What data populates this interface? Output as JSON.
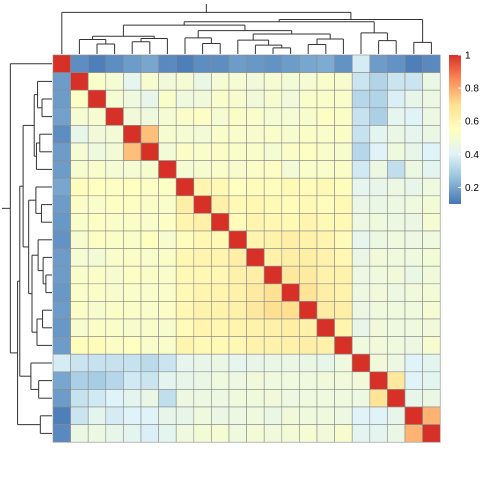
{
  "chart_data": {
    "type": "heatmap",
    "n": 22,
    "values": [
      [
        1.0,
        0.15,
        0.12,
        0.15,
        0.18,
        0.2,
        0.14,
        0.12,
        0.15,
        0.15,
        0.18,
        0.17,
        0.16,
        0.18,
        0.2,
        0.21,
        0.16,
        0.38,
        0.18,
        0.16,
        0.12,
        0.14
      ],
      [
        0.18,
        1.0,
        0.52,
        0.5,
        0.43,
        0.51,
        0.48,
        0.5,
        0.45,
        0.5,
        0.5,
        0.48,
        0.5,
        0.49,
        0.5,
        0.52,
        0.51,
        0.36,
        0.31,
        0.36,
        0.36,
        0.45
      ],
      [
        0.18,
        0.54,
        1.0,
        0.5,
        0.47,
        0.44,
        0.52,
        0.47,
        0.48,
        0.52,
        0.51,
        0.48,
        0.51,
        0.48,
        0.52,
        0.52,
        0.52,
        0.32,
        0.31,
        0.39,
        0.44,
        0.46
      ],
      [
        0.19,
        0.5,
        0.51,
        1.0,
        0.48,
        0.47,
        0.5,
        0.52,
        0.54,
        0.5,
        0.53,
        0.52,
        0.5,
        0.5,
        0.51,
        0.54,
        0.53,
        0.35,
        0.3,
        0.43,
        0.4,
        0.46
      ],
      [
        0.15,
        0.44,
        0.48,
        0.49,
        1.0,
        0.76,
        0.51,
        0.5,
        0.49,
        0.52,
        0.52,
        0.51,
        0.52,
        0.51,
        0.53,
        0.52,
        0.53,
        0.35,
        0.42,
        0.45,
        0.43,
        0.45
      ],
      [
        0.18,
        0.5,
        0.47,
        0.49,
        0.76,
        1.0,
        0.49,
        0.53,
        0.52,
        0.53,
        0.52,
        0.52,
        0.5,
        0.53,
        0.54,
        0.52,
        0.51,
        0.32,
        0.4,
        0.47,
        0.44,
        0.4
      ],
      [
        0.18,
        0.51,
        0.52,
        0.5,
        0.5,
        0.51,
        1.0,
        0.5,
        0.51,
        0.52,
        0.51,
        0.53,
        0.54,
        0.49,
        0.52,
        0.52,
        0.53,
        0.37,
        0.46,
        0.34,
        0.46,
        0.42
      ],
      [
        0.2,
        0.56,
        0.55,
        0.54,
        0.55,
        0.54,
        0.54,
        1.0,
        0.6,
        0.58,
        0.55,
        0.57,
        0.56,
        0.58,
        0.57,
        0.58,
        0.56,
        0.43,
        0.44,
        0.46,
        0.44,
        0.47
      ],
      [
        0.18,
        0.53,
        0.52,
        0.54,
        0.54,
        0.53,
        0.52,
        0.63,
        1.0,
        0.62,
        0.58,
        0.59,
        0.58,
        0.57,
        0.58,
        0.56,
        0.58,
        0.45,
        0.45,
        0.46,
        0.47,
        0.49
      ],
      [
        0.17,
        0.52,
        0.54,
        0.52,
        0.53,
        0.52,
        0.54,
        0.6,
        0.62,
        1.0,
        0.57,
        0.6,
        0.59,
        0.58,
        0.6,
        0.58,
        0.58,
        0.46,
        0.47,
        0.46,
        0.45,
        0.5
      ],
      [
        0.16,
        0.51,
        0.54,
        0.53,
        0.52,
        0.55,
        0.51,
        0.56,
        0.59,
        0.58,
        1.0,
        0.6,
        0.61,
        0.63,
        0.61,
        0.6,
        0.57,
        0.43,
        0.46,
        0.47,
        0.46,
        0.47
      ],
      [
        0.18,
        0.5,
        0.49,
        0.52,
        0.53,
        0.52,
        0.53,
        0.59,
        0.6,
        0.6,
        0.63,
        1.0,
        0.62,
        0.63,
        0.63,
        0.61,
        0.59,
        0.45,
        0.48,
        0.47,
        0.47,
        0.49
      ],
      [
        0.18,
        0.52,
        0.53,
        0.51,
        0.54,
        0.53,
        0.52,
        0.58,
        0.59,
        0.59,
        0.62,
        0.63,
        1.0,
        0.66,
        0.65,
        0.61,
        0.61,
        0.46,
        0.47,
        0.48,
        0.45,
        0.48
      ],
      [
        0.17,
        0.52,
        0.53,
        0.51,
        0.52,
        0.52,
        0.52,
        0.58,
        0.6,
        0.6,
        0.62,
        0.65,
        0.69,
        1.0,
        0.68,
        0.63,
        0.61,
        0.46,
        0.48,
        0.46,
        0.48,
        0.49
      ],
      [
        0.18,
        0.53,
        0.51,
        0.53,
        0.53,
        0.52,
        0.53,
        0.59,
        0.61,
        0.61,
        0.62,
        0.66,
        0.7,
        0.7,
        1.0,
        0.64,
        0.63,
        0.45,
        0.47,
        0.47,
        0.47,
        0.5
      ],
      [
        0.17,
        0.51,
        0.53,
        0.52,
        0.51,
        0.52,
        0.51,
        0.57,
        0.6,
        0.59,
        0.6,
        0.61,
        0.62,
        0.63,
        0.62,
        1.0,
        0.6,
        0.44,
        0.48,
        0.47,
        0.47,
        0.48
      ],
      [
        0.18,
        0.56,
        0.57,
        0.53,
        0.55,
        0.52,
        0.52,
        0.6,
        0.58,
        0.58,
        0.59,
        0.61,
        0.61,
        0.62,
        0.63,
        0.62,
        1.0,
        0.47,
        0.48,
        0.47,
        0.46,
        0.51
      ],
      [
        0.38,
        0.36,
        0.35,
        0.35,
        0.35,
        0.33,
        0.36,
        0.43,
        0.44,
        0.45,
        0.43,
        0.44,
        0.45,
        0.45,
        0.45,
        0.44,
        0.47,
        1.0,
        0.48,
        0.46,
        0.4,
        0.42
      ],
      [
        0.2,
        0.3,
        0.29,
        0.32,
        0.37,
        0.36,
        0.42,
        0.44,
        0.45,
        0.47,
        0.46,
        0.48,
        0.47,
        0.47,
        0.47,
        0.48,
        0.48,
        0.48,
        1.0,
        0.66,
        0.4,
        0.42
      ],
      [
        0.18,
        0.35,
        0.37,
        0.4,
        0.42,
        0.45,
        0.34,
        0.46,
        0.46,
        0.46,
        0.47,
        0.47,
        0.48,
        0.46,
        0.47,
        0.47,
        0.47,
        0.46,
        0.68,
        1.0,
        0.44,
        0.45
      ],
      [
        0.12,
        0.36,
        0.42,
        0.38,
        0.4,
        0.4,
        0.44,
        0.44,
        0.47,
        0.45,
        0.46,
        0.47,
        0.45,
        0.48,
        0.47,
        0.47,
        0.46,
        0.4,
        0.4,
        0.44,
        1.0,
        0.78
      ],
      [
        0.14,
        0.45,
        0.46,
        0.44,
        0.42,
        0.39,
        0.42,
        0.47,
        0.49,
        0.5,
        0.47,
        0.49,
        0.48,
        0.49,
        0.5,
        0.48,
        0.51,
        0.42,
        0.42,
        0.45,
        0.78,
        1.0
      ]
    ],
    "scale": {
      "min": 0.1,
      "max": 1.0,
      "ticks": [
        "0.2",
        "0.4",
        "0.6",
        "0.8",
        "1"
      ],
      "tick_values": [
        0.2,
        0.4,
        0.6,
        0.8,
        1.0
      ],
      "colors": [
        "#4575b4",
        "#91bfdb",
        "#e0f3f8",
        "#ffffbf",
        "#fee090",
        "#fc8d59",
        "#d73027"
      ]
    },
    "grid": true,
    "legend": "right",
    "dendrograms": [
      "top",
      "left"
    ]
  }
}
